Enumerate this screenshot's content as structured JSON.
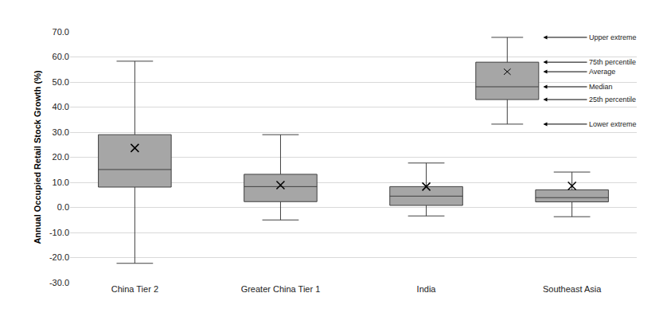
{
  "chart_data": {
    "type": "box",
    "y_label": "Annual Occupied Retail Stock Growth (%)",
    "categories": [
      "China Tier 2",
      "Greater China Tier 1",
      "India",
      "Southeast Asia"
    ],
    "lower_extreme": [
      -22.3,
      -5.0,
      -3.4,
      -3.7
    ],
    "q1": [
      8.1,
      2.3,
      0.8,
      2.2
    ],
    "median": [
      15.1,
      8.3,
      4.5,
      3.9
    ],
    "q3": [
      29.0,
      13.2,
      8.3,
      7.0
    ],
    "upper_extreme": [
      58.3,
      29.0,
      17.7,
      14.1
    ],
    "average": [
      23.7,
      8.9,
      8.3,
      8.6
    ],
    "color": "#a6a6a6",
    "marker": "x",
    "ylim": [
      -30,
      70
    ],
    "yticks": [
      {
        "value": -30,
        "label": "-30.0"
      },
      {
        "value": -20,
        "label": "-20.0"
      },
      {
        "value": -10,
        "label": "-10.0"
      },
      {
        "value": 0,
        "label": "0.0"
      },
      {
        "value": 10,
        "label": "10.0"
      },
      {
        "value": 20,
        "label": "20.0"
      },
      {
        "value": 30,
        "label": "30.0"
      },
      {
        "value": 40,
        "label": "40.0"
      },
      {
        "value": 50,
        "label": "50.0"
      },
      {
        "value": 60,
        "label": "60.0"
      },
      {
        "value": 70,
        "label": "70.0"
      }
    ],
    "grid": true,
    "key": {
      "upper_extreme": "Upper extreme",
      "q3": "75th percentile",
      "average": "Average",
      "median": "Median",
      "q1": "25th percentile",
      "lower_extreme": "Lower extreme"
    }
  }
}
